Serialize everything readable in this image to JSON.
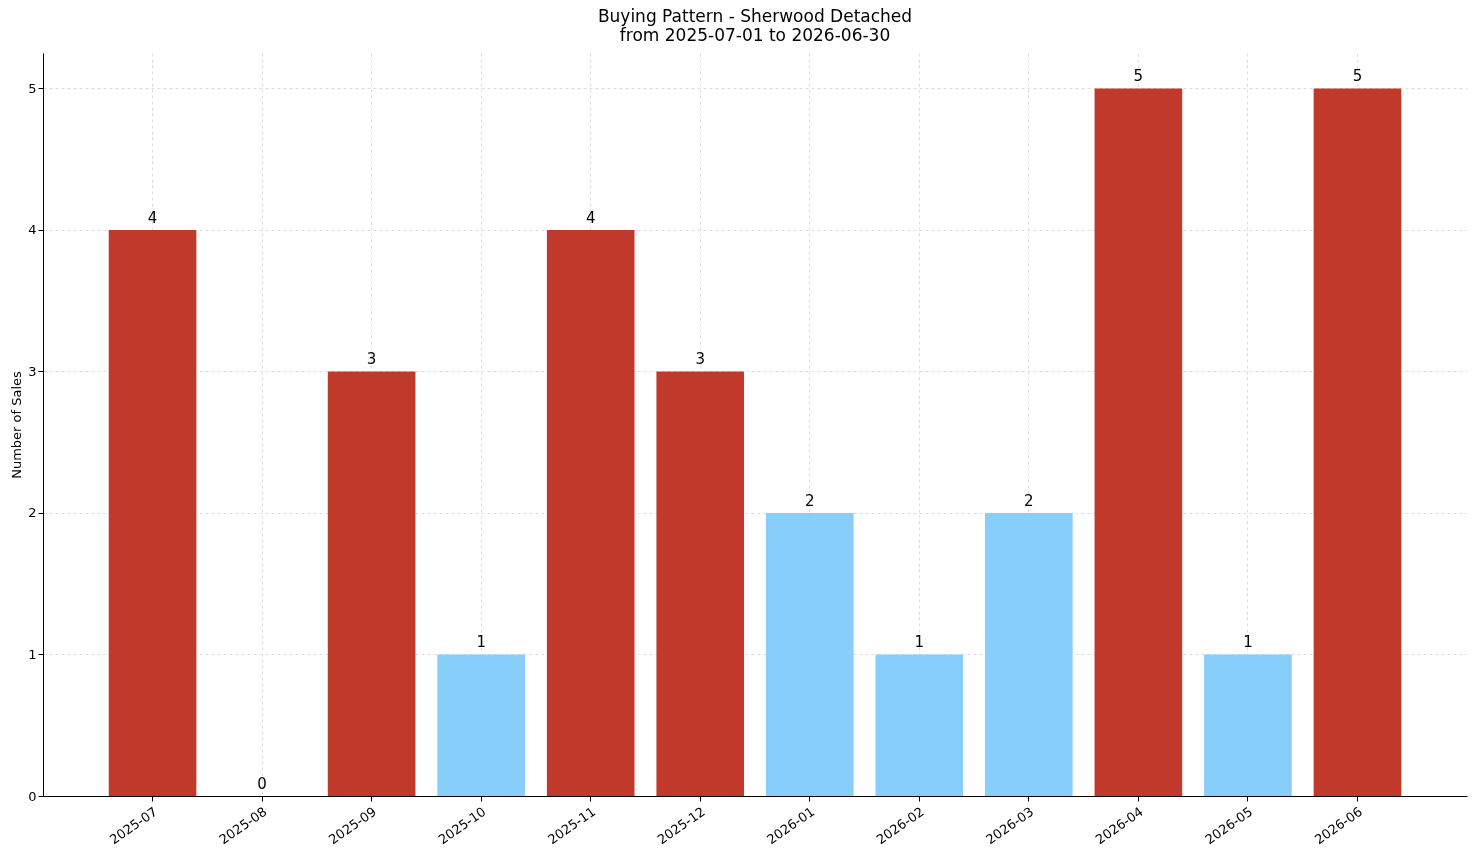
{
  "chart_data": {
    "type": "bar",
    "title": "Buying Pattern - Sherwood Detached",
    "subtitle": "from 2025-07-01 to 2026-06-30",
    "ylabel": "Number of Sales",
    "categories": [
      "2025-07",
      "2025-08",
      "2025-09",
      "2025-10",
      "2025-11",
      "2025-12",
      "2026-01",
      "2026-02",
      "2026-03",
      "2026-04",
      "2026-05",
      "2026-06"
    ],
    "values": [
      4,
      0,
      3,
      1,
      4,
      3,
      2,
      1,
      2,
      5,
      1,
      5
    ],
    "colors": [
      "#c0392b",
      "#c0392b",
      "#c0392b",
      "#87cefa",
      "#c0392b",
      "#c0392b",
      "#87cefa",
      "#87cefa",
      "#87cefa",
      "#c0392b",
      "#87cefa",
      "#c0392b"
    ],
    "ylim": [
      0,
      5.25
    ],
    "yticks": [
      0,
      1,
      2,
      3,
      4,
      5
    ],
    "grid": true,
    "data_labels": true
  }
}
